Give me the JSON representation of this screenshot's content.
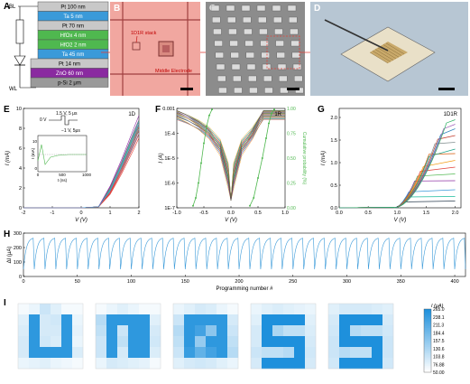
{
  "figure": {
    "panel_letters": {
      "A": "A",
      "B": "B",
      "C": "C",
      "D": "D",
      "E": "E",
      "F": "F",
      "G": "G",
      "H": "H",
      "I": "I"
    }
  },
  "panelA": {
    "layers": [
      {
        "label": "Pt 100 nm",
        "color": "#c8c8c8"
      },
      {
        "label": "Ta 5 nm",
        "color": "#3a9ad9"
      },
      {
        "label": "Pt 70 nm",
        "color": "#c8c8c8"
      },
      {
        "label": "HfOx 4 nm",
        "color": "#4fb84f"
      },
      {
        "label": "HfO2 2 nm",
        "color": "#4fb84f"
      },
      {
        "label": "Ta 45 nm",
        "color": "#3a9ad9"
      },
      {
        "label": "Pt 14 nm",
        "color": "#c8c8c8"
      },
      {
        "label": "ZnO 60 nm",
        "color": "#8a2aa0"
      },
      {
        "label": "p-Si 2 μm",
        "color": "#9a9a9a"
      }
    ],
    "bl_label": "BL",
    "wl_label": "WL"
  },
  "panelB": {
    "stack_label": "1D1R stack",
    "electrode_label": "Middle Electrode"
  },
  "panelE": {
    "tag": "1D",
    "pulse_top": "1.5 V, 5 μs",
    "pulse_zero": "0 V",
    "pulse_bottom": "−1 V, 5μs",
    "inset_ylabel": "I (mA)",
    "inset_xlabel": "t (ns)",
    "inset_xticks": [
      "0",
      "500",
      "1000"
    ],
    "inset_yticks": [
      "0",
      "10"
    ],
    "xlabel": "V (V)",
    "ylabel": "I (mA)"
  },
  "panelF": {
    "tag": "1R",
    "xlabel": "V (V)",
    "ylabel": "I (A)",
    "y2label": "Cumulative probability (%)",
    "y2ticks": [
      "1.00",
      "0.75",
      "0.50",
      "0.25",
      "0.00"
    ]
  },
  "panelG": {
    "tag": "1D1R",
    "xlabel": "V (V)",
    "ylabel": "I (mA)"
  },
  "panelH": {
    "xlabel": "Programming number #",
    "ylabel": "ΔI (μA)"
  },
  "panelI": {
    "colorbar_title": "I (μA)",
    "colorbar_ticks": [
      "265.0",
      "238.1",
      "211.3",
      "184.4",
      "157.5",
      "130.6",
      "103.8",
      "76.88",
      "50.00"
    ]
  },
  "chart_data": [
    {
      "id": "E",
      "type": "line",
      "title": "",
      "xlabel": "V (V)",
      "ylabel": "I (mA)",
      "xlim": [
        -2,
        2
      ],
      "ylim": [
        0,
        10
      ],
      "xticks": [
        -2,
        -1,
        0,
        1,
        2
      ],
      "yticks": [
        0,
        2,
        4,
        6,
        8,
        10
      ],
      "series": [
        {
          "x": [
            -2,
            0,
            0.6,
            1.0,
            1.4,
            1.8,
            2.0
          ],
          "values": [
            0,
            0,
            0.1,
            1.5,
            3.8,
            6.4,
            7.8
          ]
        },
        {
          "x": [
            -2,
            0,
            0.6,
            1.0,
            1.4,
            1.8,
            2.0
          ],
          "values": [
            0,
            0,
            0.1,
            1.7,
            4.1,
            6.8,
            8.2
          ]
        },
        {
          "x": [
            -2,
            0,
            0.6,
            1.0,
            1.4,
            1.8,
            2.0
          ],
          "values": [
            0,
            0,
            0.1,
            1.9,
            4.4,
            7.2,
            8.6
          ]
        },
        {
          "x": [
            -2,
            0,
            0.6,
            1.0,
            1.4,
            1.8,
            2.0
          ],
          "values": [
            0,
            0,
            0.1,
            2.1,
            4.7,
            7.6,
            9.0
          ]
        }
      ]
    },
    {
      "id": "F",
      "type": "line",
      "title": "",
      "xlabel": "V (V)",
      "ylabel": "I (A)",
      "xlim": [
        -1.0,
        1.0
      ],
      "ylim": [
        1e-07,
        0.001
      ],
      "yscale": "log",
      "xticks": [
        -1.0,
        -0.5,
        0.0,
        0.5,
        1.0
      ],
      "yticks_labels": [
        "0.001",
        "1E-4",
        "1E-5",
        "1E-6",
        "1E-7"
      ],
      "y2lim": [
        0,
        1
      ],
      "series_cdf_set": {
        "x": [
          -0.7,
          -0.65,
          -0.6,
          -0.55,
          -0.5,
          -0.45,
          -0.4,
          -0.35
        ],
        "values": [
          0.02,
          0.1,
          0.25,
          0.45,
          0.65,
          0.82,
          0.93,
          0.99
        ]
      },
      "series_cdf_reset": {
        "x": [
          0.35,
          0.42,
          0.5,
          0.58,
          0.65,
          0.7,
          0.75,
          0.8
        ],
        "values": [
          0.02,
          0.1,
          0.3,
          0.5,
          0.7,
          0.85,
          0.95,
          0.99
        ]
      }
    },
    {
      "id": "G",
      "type": "line",
      "title": "",
      "xlabel": "V (V)",
      "ylabel": "I (mA)",
      "xlim": [
        0.0,
        2.1
      ],
      "ylim": [
        0,
        2.2
      ],
      "xticks": [
        0.0,
        0.5,
        1.0,
        1.5,
        2.0
      ],
      "yticks": [
        0.0,
        0.5,
        1.0,
        1.5,
        2.0
      ],
      "compliance_levels": [
        0.15,
        0.25,
        0.4,
        0.6,
        0.75,
        0.9,
        1.05,
        1.2,
        1.3,
        1.45,
        1.6,
        1.75,
        1.85,
        1.95
      ]
    },
    {
      "id": "H",
      "type": "line",
      "title": "",
      "xlabel": "Programming number #",
      "ylabel": "ΔI (μA)",
      "xlim": [
        0,
        410
      ],
      "ylim": [
        0,
        300
      ],
      "xticks": [
        0,
        50,
        100,
        150,
        200,
        250,
        300,
        350,
        400
      ],
      "yticks": [
        0,
        100,
        200,
        300
      ],
      "cycle_length": 10,
      "cycle_min": 50,
      "cycle_max": 265
    },
    {
      "id": "I",
      "type": "heatmap",
      "title": "",
      "vmin": 50,
      "vmax": 265,
      "maps": [
        [
          [
            60,
            70,
            100,
            80,
            60,
            60
          ],
          [
            80,
            250,
            90,
            95,
            250,
            70
          ],
          [
            85,
            250,
            90,
            90,
            250,
            75
          ],
          [
            90,
            250,
            95,
            85,
            250,
            70
          ],
          [
            90,
            250,
            250,
            250,
            250,
            85
          ],
          [
            70,
            75,
            80,
            70,
            65,
            60
          ]
        ],
        [
          [
            60,
            70,
            80,
            70,
            60,
            60
          ],
          [
            120,
            250,
            250,
            250,
            250,
            80
          ],
          [
            110,
            250,
            100,
            250,
            250,
            90
          ],
          [
            100,
            250,
            110,
            250,
            250,
            95
          ],
          [
            100,
            250,
            90,
            250,
            250,
            85
          ],
          [
            70,
            90,
            85,
            80,
            75,
            60
          ]
        ],
        [
          [
            70,
            80,
            90,
            85,
            70,
            60
          ],
          [
            100,
            250,
            250,
            250,
            250,
            90
          ],
          [
            120,
            250,
            230,
            160,
            250,
            100
          ],
          [
            110,
            250,
            150,
            250,
            250,
            110
          ],
          [
            100,
            240,
            200,
            230,
            250,
            120
          ],
          [
            80,
            90,
            95,
            90,
            80,
            70
          ]
        ],
        [
          [
            70,
            80,
            85,
            80,
            75,
            70
          ],
          [
            80,
            265,
            265,
            265,
            265,
            80
          ],
          [
            90,
            265,
            130,
            110,
            110,
            85
          ],
          [
            90,
            265,
            265,
            265,
            265,
            90
          ],
          [
            100,
            110,
            110,
            120,
            265,
            95
          ],
          [
            90,
            265,
            265,
            265,
            265,
            90
          ]
        ],
        [
          [
            80,
            90,
            90,
            90,
            85,
            80
          ],
          [
            90,
            265,
            265,
            265,
            265,
            90
          ],
          [
            95,
            265,
            120,
            110,
            110,
            95
          ],
          [
            100,
            265,
            265,
            265,
            265,
            100
          ],
          [
            100,
            120,
            110,
            110,
            265,
            100
          ],
          [
            95,
            265,
            265,
            265,
            265,
            95
          ]
        ]
      ]
    }
  ]
}
